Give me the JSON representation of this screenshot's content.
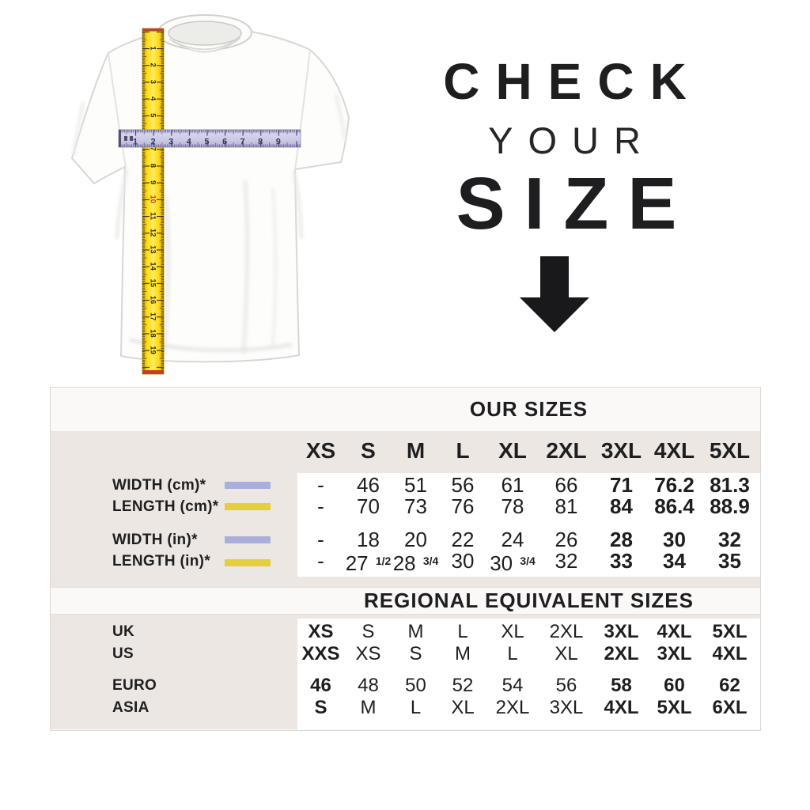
{
  "hero": {
    "title_line1": "CHECK",
    "title_line2": "YOUR",
    "title_line3": "SIZE",
    "arrow_icon": "down-arrow"
  },
  "tapes": {
    "vertical": {
      "numbers": [
        "1",
        "2",
        "3",
        "4",
        "5",
        "6",
        "7",
        "8",
        "9",
        "10",
        "11",
        "12",
        "13",
        "14",
        "15",
        "16",
        "17",
        "18",
        "19"
      ],
      "highlight": "10",
      "color": "#ffd712"
    },
    "horizontal": {
      "numbers": [
        "1",
        "2",
        "3",
        "4",
        "5",
        "6",
        "7",
        "8",
        "9"
      ],
      "color": "#ccc9e6"
    }
  },
  "size_table": {
    "title": "OUR SIZES",
    "columns": [
      "XS",
      "S",
      "M",
      "L",
      "XL",
      "2XL",
      "3XL",
      "4XL",
      "5XL"
    ],
    "bold_value_cols": [
      6,
      7,
      8
    ],
    "swatch_colors": {
      "purple": "#a9aeda",
      "yellow": "#e4cf3e"
    },
    "rows": [
      {
        "label": "WIDTH (cm)*",
        "swatch": "purple",
        "values": [
          "-",
          "46",
          "51",
          "56",
          "61",
          "66",
          "71",
          "76.2",
          "81.3"
        ]
      },
      {
        "label": "LENGTH (cm)*",
        "swatch": "yellow",
        "values": [
          "-",
          "70",
          "73",
          "76",
          "78",
          "81",
          "84",
          "86.4",
          "88.9"
        ]
      },
      {
        "label": "WIDTH (in)*",
        "swatch": "purple",
        "values": [
          "-",
          "18",
          "20",
          "22",
          "24",
          "26",
          "28",
          "30",
          "32"
        ]
      },
      {
        "label": "LENGTH (in)*",
        "swatch": "yellow",
        "values": [
          "-",
          "27 1/2",
          "28 3/4",
          "30",
          "30 3/4",
          "32",
          "33",
          "34",
          "35"
        ]
      }
    ]
  },
  "regional_table": {
    "title": "REGIONAL EQUIVALENT SIZES",
    "rows": [
      {
        "label": "UK",
        "values": [
          "XS",
          "S",
          "M",
          "L",
          "XL",
          "2XL",
          "3XL",
          "4XL",
          "5XL"
        ],
        "bold": [
          0,
          6,
          7,
          8
        ]
      },
      {
        "label": "US",
        "values": [
          "XXS",
          "XS",
          "S",
          "M",
          "L",
          "XL",
          "2XL",
          "3XL",
          "4XL"
        ],
        "bold": [
          0,
          6,
          7,
          8
        ]
      },
      {
        "label": "EURO",
        "values": [
          "46",
          "48",
          "50",
          "52",
          "54",
          "56",
          "58",
          "60",
          "62"
        ],
        "bold": [
          0,
          6,
          7,
          8
        ]
      },
      {
        "label": "ASIA",
        "values": [
          "S",
          "M",
          "L",
          "XL",
          "2XL",
          "3XL",
          "4XL",
          "5XL",
          "6XL"
        ],
        "bold": [
          0,
          6,
          7,
          8
        ]
      }
    ]
  }
}
